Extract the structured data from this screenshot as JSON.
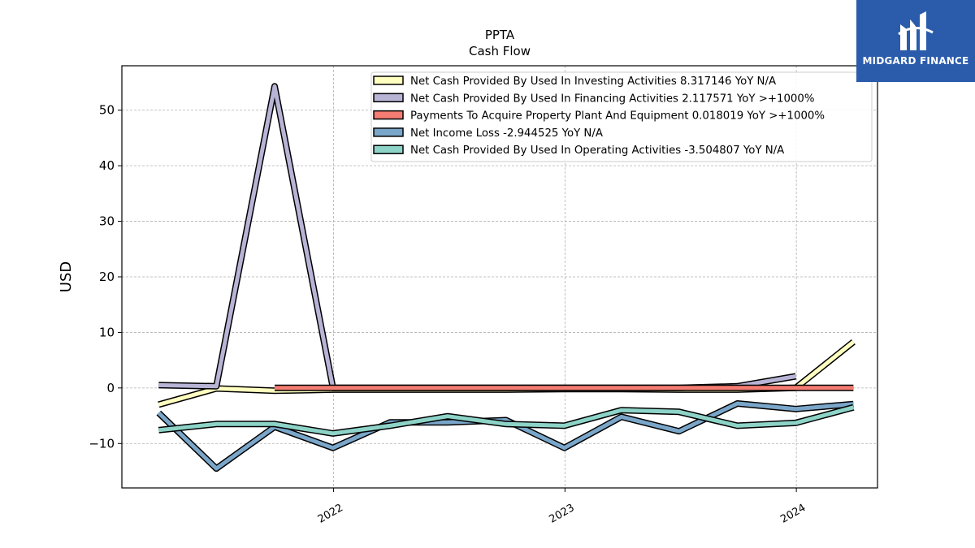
{
  "chart_data": {
    "type": "line",
    "title": "PPTA",
    "subtitle": "Cash Flow",
    "xlabel": "",
    "ylabel": "USD",
    "ylim": [
      -18,
      58
    ],
    "xlim": [
      "2021-02-01",
      "2024-05-08"
    ],
    "yticks": [
      -10,
      0,
      10,
      20,
      30,
      40,
      50
    ],
    "ytick_labels": [
      "−10",
      "0",
      "10",
      "20",
      "30",
      "40",
      "50"
    ],
    "xticks": [
      "2022-01-01",
      "2023-01-01",
      "2024-01-01"
    ],
    "xtick_labels": [
      "2022",
      "2023",
      "2024"
    ],
    "grid": true,
    "legend_position": "top-right",
    "series": [
      {
        "name": "Net Cash Provided By Used In Investing Activities  8.317146 YoY N/A",
        "color": "#ffffc0",
        "x": [
          "2021-03-31",
          "2021-06-30",
          "2021-09-30",
          "2021-12-31",
          "2022-03-31",
          "2022-06-30",
          "2022-09-30",
          "2022-12-31",
          "2023-03-31",
          "2023-06-30",
          "2023-09-30",
          "2023-12-31",
          "2024-03-31"
        ],
        "values": [
          -3.0,
          -0.1,
          -0.5,
          -0.3,
          -0.3,
          -0.3,
          -0.3,
          -0.2,
          -0.2,
          -0.3,
          -0.3,
          0.0,
          8.3
        ]
      },
      {
        "name": "Net Cash Provided By Used In Financing Activities  2.117571 YoY >+1000%",
        "color": "#b7b4d6",
        "x": [
          "2021-03-31",
          "2021-06-30",
          "2021-09-30",
          "2021-12-31",
          "2022-03-31",
          "2022-06-30",
          "2022-09-30",
          "2022-12-31",
          "2023-03-31",
          "2023-06-30",
          "2023-09-30",
          "2023-12-31"
        ],
        "values": [
          0.5,
          0.3,
          54.3,
          0.0,
          0.0,
          0.0,
          0.0,
          0.0,
          0.0,
          0.0,
          0.3,
          2.1
        ]
      },
      {
        "name": "Payments To Acquire Property Plant And Equipment  0.018019 YoY >+1000%",
        "color": "#f47c72",
        "x": [
          "2021-09-30",
          "2021-12-31",
          "2022-03-31",
          "2022-06-30",
          "2022-09-30",
          "2022-12-31",
          "2023-03-31",
          "2023-06-30",
          "2023-09-30",
          "2023-12-31",
          "2024-03-31"
        ],
        "values": [
          0.0,
          0.0,
          0.0,
          0.0,
          0.0,
          0.0,
          0.0,
          0.0,
          0.0,
          0.0,
          0.0
        ]
      },
      {
        "name": "Net Income Loss  -2.944525 YoY N/A",
        "color": "#7aa6c9",
        "x": [
          "2021-03-31",
          "2021-06-30",
          "2021-09-30",
          "2021-12-31",
          "2022-03-31",
          "2022-06-30",
          "2022-09-30",
          "2022-12-31",
          "2023-03-31",
          "2023-06-30",
          "2023-09-30",
          "2023-12-31",
          "2024-03-31"
        ],
        "values": [
          -4.5,
          -14.5,
          -7.0,
          -10.8,
          -6.2,
          -6.2,
          -5.8,
          -10.8,
          -5.2,
          -7.8,
          -2.8,
          -3.8,
          -2.9
        ]
      },
      {
        "name": "Net Cash Provided By Used In Operating Activities  -3.504807 YoY N/A",
        "color": "#8dd3c7",
        "x": [
          "2021-03-31",
          "2021-06-30",
          "2021-09-30",
          "2021-12-31",
          "2022-03-31",
          "2022-06-30",
          "2022-09-30",
          "2022-12-31",
          "2023-03-31",
          "2023-06-30",
          "2023-09-30",
          "2023-12-31",
          "2024-03-31"
        ],
        "values": [
          -7.6,
          -6.5,
          -6.5,
          -8.2,
          -6.8,
          -5.1,
          -6.5,
          -6.8,
          -4.0,
          -4.3,
          -6.8,
          -6.3,
          -3.5
        ]
      }
    ]
  },
  "logo": {
    "text": "MIDGARD FINANCE",
    "color": "#2b5cac"
  }
}
